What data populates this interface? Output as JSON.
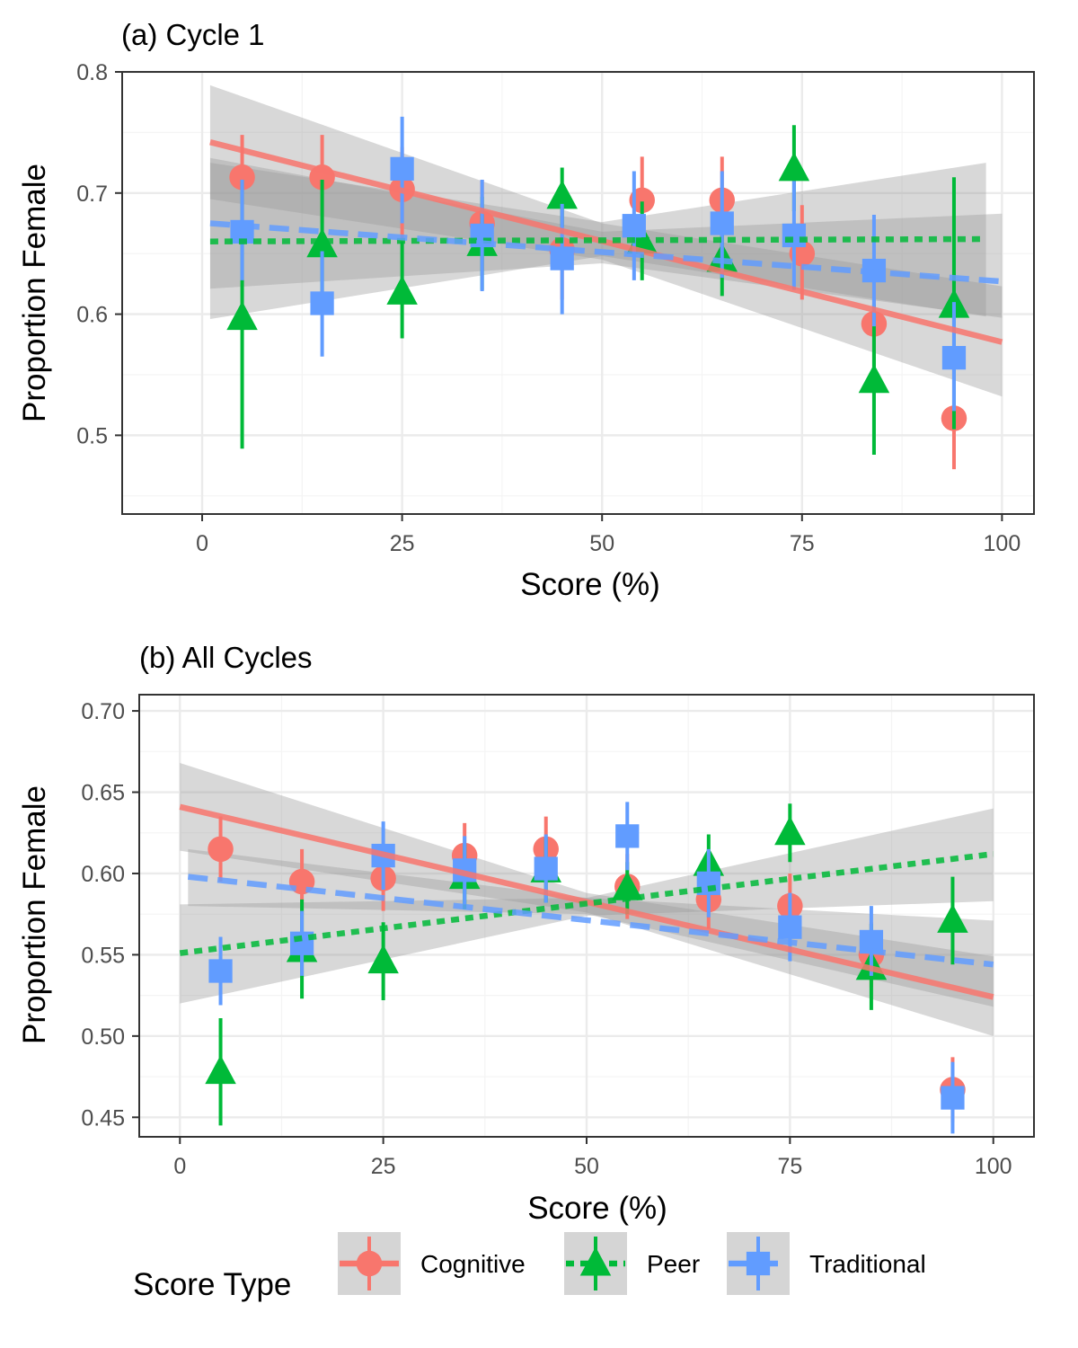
{
  "chart_data": [
    {
      "type": "scatter",
      "title": "(a) Cycle 1",
      "xlabel": "Score (%)",
      "ylabel": "Proportion Female",
      "xlim": [
        -10,
        104
      ],
      "ylim": [
        0.435,
        0.8
      ],
      "xticks": [
        0,
        25,
        50,
        75,
        100
      ],
      "xtick_labels": [
        "0",
        "25",
        "50",
        "75",
        "100"
      ],
      "yticks": [
        0.5,
        0.6,
        0.7,
        0.8
      ],
      "ytick_labels": [
        "0.5",
        "0.6",
        "0.7",
        "0.8"
      ],
      "grid": true,
      "series": [
        {
          "name": "Cognitive",
          "points": [
            {
              "x": 5,
              "y": 0.713,
              "lo": 0.675,
              "hi": 0.748
            },
            {
              "x": 15,
              "y": 0.713,
              "lo": 0.675,
              "hi": 0.748
            },
            {
              "x": 25,
              "y": 0.703,
              "lo": 0.662,
              "hi": 0.738
            },
            {
              "x": 35,
              "y": 0.675,
              "lo": 0.636,
              "hi": 0.711
            },
            {
              "x": 45,
              "y": 0.653,
              "lo": 0.612,
              "hi": 0.69
            },
            {
              "x": 55,
              "y": 0.694,
              "lo": 0.655,
              "hi": 0.73
            },
            {
              "x": 65,
              "y": 0.694,
              "lo": 0.655,
              "hi": 0.73
            },
            {
              "x": 75,
              "y": 0.65,
              "lo": 0.612,
              "hi": 0.69
            },
            {
              "x": 84,
              "y": 0.592,
              "lo": 0.55,
              "hi": 0.632
            },
            {
              "x": 94,
              "y": 0.514,
              "lo": 0.472,
              "hi": 0.555
            }
          ],
          "fit": {
            "x": [
              1,
              100
            ],
            "y": [
              0.742,
              0.577
            ]
          },
          "ci": {
            "x": [
              1,
              50,
              100
            ],
            "lo": [
              0.695,
              0.645,
              0.532
            ],
            "hi": [
              0.789,
              0.675,
              0.623
            ]
          }
        },
        {
          "name": "Peer",
          "points": [
            {
              "x": 5,
              "y": 0.597,
              "lo": 0.489,
              "hi": 0.711
            },
            {
              "x": 15,
              "y": 0.657,
              "lo": 0.606,
              "hi": 0.711
            },
            {
              "x": 25,
              "y": 0.618,
              "lo": 0.58,
              "hi": 0.66
            },
            {
              "x": 35,
              "y": 0.658,
              "lo": 0.62,
              "hi": 0.697
            },
            {
              "x": 45,
              "y": 0.697,
              "lo": 0.672,
              "hi": 0.721
            },
            {
              "x": 55,
              "y": 0.66,
              "lo": 0.628,
              "hi": 0.693
            },
            {
              "x": 65,
              "y": 0.645,
              "lo": 0.615,
              "hi": 0.676
            },
            {
              "x": 74,
              "y": 0.72,
              "lo": 0.685,
              "hi": 0.756
            },
            {
              "x": 84,
              "y": 0.545,
              "lo": 0.484,
              "hi": 0.608
            },
            {
              "x": 94,
              "y": 0.607,
              "lo": 0.505,
              "hi": 0.713
            }
          ],
          "fit": {
            "x": [
              1,
              98
            ],
            "y": [
              0.66,
              0.662
            ]
          },
          "ci": {
            "x": [
              1,
              50,
              98
            ],
            "lo": [
              0.596,
              0.648,
              0.598
            ],
            "hi": [
              0.725,
              0.676,
              0.725
            ]
          }
        },
        {
          "name": "Traditional",
          "points": [
            {
              "x": 5,
              "y": 0.668,
              "lo": 0.628,
              "hi": 0.711
            },
            {
              "x": 15,
              "y": 0.609,
              "lo": 0.565,
              "hi": 0.652
            },
            {
              "x": 25,
              "y": 0.72,
              "lo": 0.675,
              "hi": 0.763
            },
            {
              "x": 35,
              "y": 0.665,
              "lo": 0.619,
              "hi": 0.711
            },
            {
              "x": 45,
              "y": 0.646,
              "lo": 0.6,
              "hi": 0.691
            },
            {
              "x": 54,
              "y": 0.673,
              "lo": 0.628,
              "hi": 0.718
            },
            {
              "x": 65,
              "y": 0.675,
              "lo": 0.63,
              "hi": 0.718
            },
            {
              "x": 74,
              "y": 0.665,
              "lo": 0.62,
              "hi": 0.71
            },
            {
              "x": 84,
              "y": 0.636,
              "lo": 0.59,
              "hi": 0.682
            },
            {
              "x": 94,
              "y": 0.564,
              "lo": 0.52,
              "hi": 0.61
            }
          ],
          "fit": {
            "x": [
              1,
              100
            ],
            "y": [
              0.675,
              0.627
            ]
          },
          "ci": {
            "x": [
              1,
              50,
              100
            ],
            "lo": [
              0.621,
              0.642,
              0.597
            ],
            "hi": [
              0.729,
              0.668,
              0.683
            ]
          }
        }
      ]
    },
    {
      "type": "scatter",
      "title": "(b) All Cycles",
      "xlabel": "Score (%)",
      "ylabel": "Proportion Female",
      "xlim": [
        -5,
        105
      ],
      "ylim": [
        0.438,
        0.71
      ],
      "xticks": [
        0,
        25,
        50,
        75,
        100
      ],
      "xtick_labels": [
        "0",
        "25",
        "50",
        "75",
        "100"
      ],
      "yticks": [
        0.45,
        0.5,
        0.55,
        0.6,
        0.65,
        0.7
      ],
      "ytick_labels": [
        "0.45",
        "0.50",
        "0.55",
        "0.60",
        "0.65",
        "0.70"
      ],
      "grid": true,
      "series": [
        {
          "name": "Cognitive",
          "points": [
            {
              "x": 5,
              "y": 0.615,
              "lo": 0.595,
              "hi": 0.635
            },
            {
              "x": 15,
              "y": 0.595,
              "lo": 0.575,
              "hi": 0.615
            },
            {
              "x": 25,
              "y": 0.597,
              "lo": 0.577,
              "hi": 0.617
            },
            {
              "x": 35,
              "y": 0.611,
              "lo": 0.591,
              "hi": 0.631
            },
            {
              "x": 45,
              "y": 0.615,
              "lo": 0.595,
              "hi": 0.635
            },
            {
              "x": 55,
              "y": 0.592,
              "lo": 0.572,
              "hi": 0.612
            },
            {
              "x": 65,
              "y": 0.584,
              "lo": 0.566,
              "hi": 0.602
            },
            {
              "x": 75,
              "y": 0.58,
              "lo": 0.56,
              "hi": 0.6
            },
            {
              "x": 85,
              "y": 0.55,
              "lo": 0.53,
              "hi": 0.57
            },
            {
              "x": 95,
              "y": 0.467,
              "lo": 0.447,
              "hi": 0.487
            }
          ],
          "fit": {
            "x": [
              0,
              100
            ],
            "y": [
              0.641,
              0.524
            ]
          },
          "ci": {
            "x": [
              0,
              50,
              100
            ],
            "lo": [
              0.614,
              0.576,
              0.5
            ],
            "hi": [
              0.668,
              0.588,
              0.549
            ]
          }
        },
        {
          "name": "Peer",
          "points": [
            {
              "x": 5,
              "y": 0.478,
              "lo": 0.445,
              "hi": 0.511
            },
            {
              "x": 15,
              "y": 0.553,
              "lo": 0.523,
              "hi": 0.584
            },
            {
              "x": 25,
              "y": 0.546,
              "lo": 0.522,
              "hi": 0.57
            },
            {
              "x": 35,
              "y": 0.598,
              "lo": 0.578,
              "hi": 0.618
            },
            {
              "x": 45,
              "y": 0.602,
              "lo": 0.582,
              "hi": 0.622
            },
            {
              "x": 55,
              "y": 0.591,
              "lo": 0.575,
              "hi": 0.607
            },
            {
              "x": 65,
              "y": 0.606,
              "lo": 0.588,
              "hi": 0.624
            },
            {
              "x": 75,
              "y": 0.625,
              "lo": 0.607,
              "hi": 0.643
            },
            {
              "x": 85,
              "y": 0.542,
              "lo": 0.516,
              "hi": 0.569
            },
            {
              "x": 95,
              "y": 0.571,
              "lo": 0.544,
              "hi": 0.598
            }
          ],
          "fit": {
            "x": [
              0,
              100
            ],
            "y": [
              0.551,
              0.612
            ]
          },
          "ci": {
            "x": [
              0,
              50,
              100
            ],
            "lo": [
              0.52,
              0.574,
              0.583
            ],
            "hi": [
              0.581,
              0.585,
              0.64
            ]
          }
        },
        {
          "name": "Traditional",
          "points": [
            {
              "x": 5,
              "y": 0.54,
              "lo": 0.519,
              "hi": 0.561
            },
            {
              "x": 15,
              "y": 0.557,
              "lo": 0.537,
              "hi": 0.577
            },
            {
              "x": 25,
              "y": 0.611,
              "lo": 0.59,
              "hi": 0.632
            },
            {
              "x": 35,
              "y": 0.602,
              "lo": 0.581,
              "hi": 0.623
            },
            {
              "x": 45,
              "y": 0.603,
              "lo": 0.582,
              "hi": 0.624
            },
            {
              "x": 55,
              "y": 0.623,
              "lo": 0.602,
              "hi": 0.644
            },
            {
              "x": 65,
              "y": 0.594,
              "lo": 0.573,
              "hi": 0.615
            },
            {
              "x": 75,
              "y": 0.567,
              "lo": 0.546,
              "hi": 0.588
            },
            {
              "x": 85,
              "y": 0.558,
              "lo": 0.537,
              "hi": 0.58
            },
            {
              "x": 95,
              "y": 0.462,
              "lo": 0.44,
              "hi": 0.484
            }
          ],
          "fit": {
            "x": [
              1,
              100
            ],
            "y": [
              0.598,
              0.544
            ]
          },
          "ci": {
            "x": [
              1,
              50,
              100
            ],
            "lo": [
              0.58,
              0.575,
              0.518
            ],
            "hi": [
              0.615,
              0.585,
              0.571
            ]
          }
        }
      ]
    }
  ],
  "legend": {
    "title": "Score Type",
    "placement": "bottom",
    "items": [
      {
        "label": "Cognitive",
        "color": "#F8766D",
        "shape": "circle",
        "line": "solid"
      },
      {
        "label": "Peer",
        "color": "#00BA38",
        "shape": "triangle",
        "line": "dotted"
      },
      {
        "label": "Traditional",
        "color": "#619CFF",
        "shape": "square",
        "line": "dashed"
      }
    ]
  },
  "style": {
    "ci_fill": "#999999",
    "grid_major": "#ebebeb",
    "grid_minor": "#f4f4f4",
    "panel_border": "#333333"
  }
}
